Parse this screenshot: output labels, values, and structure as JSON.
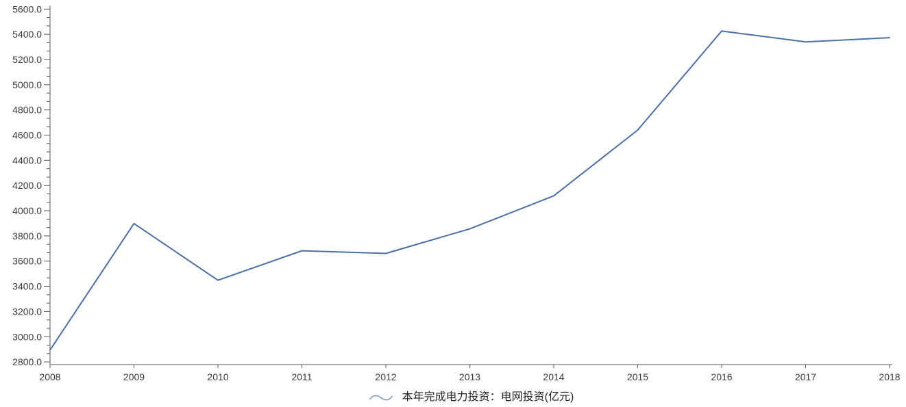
{
  "chart_data": {
    "type": "line",
    "title": "",
    "xlabel": "",
    "ylabel": "",
    "categories": [
      "2008",
      "2009",
      "2010",
      "2011",
      "2012",
      "2013",
      "2014",
      "2015",
      "2016",
      "2017",
      "2018"
    ],
    "series": [
      {
        "name": "本年完成电力投资：电网投资(亿元)",
        "values": [
          2894.6,
          3898.0,
          3448.0,
          3682.0,
          3661.0,
          3856.0,
          4118.0,
          4640.0,
          5426.0,
          5339.7,
          5373.0
        ]
      }
    ],
    "ylim": [
      2800,
      5600
    ],
    "y_tick_interval": 200,
    "y_minor_divisions_per_major": 3,
    "y_tick_labels": [
      "2800.0",
      "3000.0",
      "3200.0",
      "3400.0",
      "3600.0",
      "3800.0",
      "4000.0",
      "4200.0",
      "4400.0",
      "4600.0",
      "4800.0",
      "5000.0",
      "5200.0",
      "5400.0",
      "5600.0"
    ],
    "grid": false,
    "legend_position": "bottom-center"
  },
  "legend": {
    "label": "本年完成电力投资：电网投资(亿元)",
    "icon": "wave-line-icon"
  },
  "colors": {
    "line": "#4a6fa5",
    "legend_icon": "#7e97bd",
    "axis": "#555555",
    "tick_text": "#3a3a3a",
    "legend_text": "#222222",
    "background": "#ffffff"
  }
}
